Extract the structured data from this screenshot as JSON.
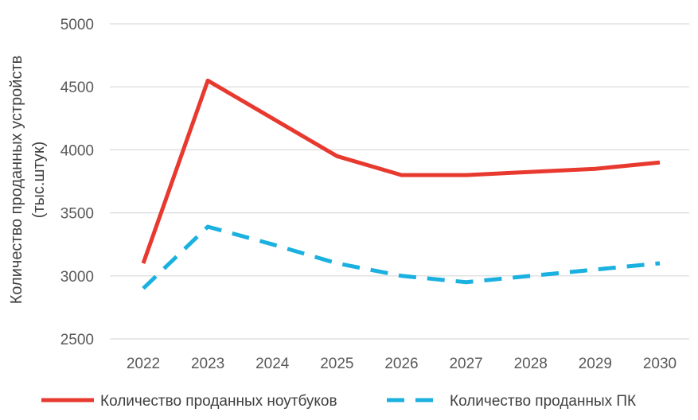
{
  "chart_data": {
    "type": "line",
    "categories": [
      "2022",
      "2023",
      "2024",
      "2025",
      "2026",
      "2027",
      "2028",
      "2029",
      "2030"
    ],
    "series": [
      {
        "name": "Количество проданных ноутбуков",
        "values": [
          3100,
          4550,
          4250,
          3950,
          3800,
          3800,
          3825,
          3850,
          3900
        ],
        "color": "#e8392f",
        "style": "solid"
      },
      {
        "name": "Количество проданных ПК",
        "values": [
          2900,
          3390,
          3250,
          3100,
          3000,
          2950,
          3000,
          3050,
          3100
        ],
        "color": "#1ab0e0",
        "style": "dashed"
      }
    ],
    "yticks": [
      "2500",
      "3000",
      "3500",
      "4000",
      "4500",
      "5000"
    ],
    "ylim": [
      2500,
      5000
    ],
    "ylabel_line1": "Количество проданных устройств",
    "ylabel_line2": "(тыс.штук)",
    "xlabel": "",
    "title": "",
    "grid": "horizontal",
    "legend_position": "bottom"
  }
}
